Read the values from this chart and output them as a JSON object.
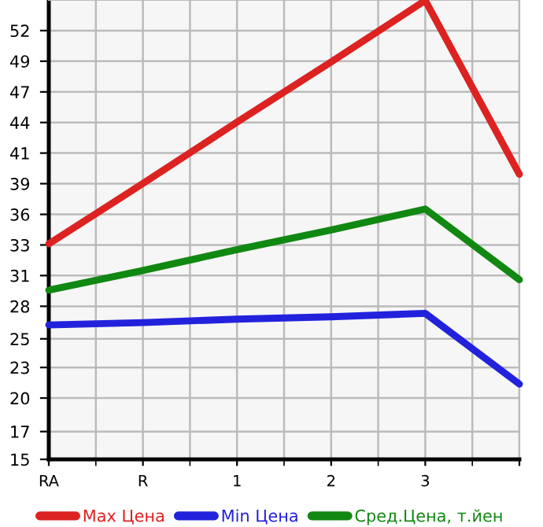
{
  "chart_data": {
    "type": "line",
    "categories": [
      "RA",
      "R",
      "1",
      "2",
      "3",
      null
    ],
    "series": [
      {
        "name": "Max Цена",
        "color": "#dd2222",
        "values": [
          33.6,
          38.8,
          44.1,
          49.3,
          54.6,
          39.6
        ]
      },
      {
        "name": "Min Цена",
        "color": "#2222dd",
        "values": [
          26.6,
          26.8,
          27.1,
          27.3,
          27.6,
          21.5
        ]
      },
      {
        "name": "Сред.Цена, т.йен",
        "color": "#118811",
        "values": [
          29.6,
          31.3,
          33.1,
          34.8,
          36.6,
          30.5
        ]
      }
    ],
    "ylim": [
      15,
      54.64
    ],
    "yticks": [
      15,
      {
        "value": 17.4,
        "label": "17"
      },
      {
        "value": 20.29,
        "label": "20"
      },
      {
        "value": 22.93,
        "label": "23"
      },
      {
        "value": 25.4,
        "label": "25"
      },
      {
        "value": 28.21,
        "label": "28"
      },
      {
        "value": 30.86,
        "label": "31"
      },
      {
        "value": 33.5,
        "label": "33"
      },
      {
        "value": 36.14,
        "label": "36"
      },
      {
        "value": 38.79,
        "label": "39"
      },
      {
        "value": 41.43,
        "label": "41"
      },
      {
        "value": 44.07,
        "label": "44"
      },
      {
        "value": 46.71,
        "label": "47"
      },
      {
        "value": 49.36,
        "label": "49"
      },
      52
    ],
    "grid": true,
    "legend": "bottom",
    "marker": "none",
    "line_style": "solid"
  }
}
